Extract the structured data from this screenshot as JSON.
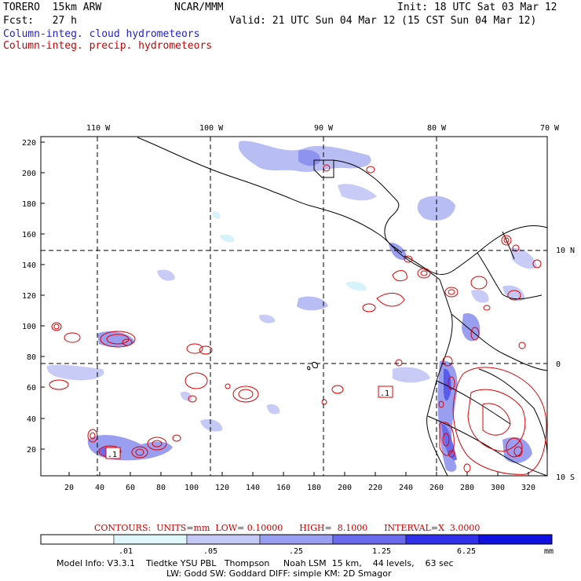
{
  "header": {
    "model": "TORERO  15km ARW",
    "org": "NCAR/MMM",
    "init": "Init: 18 UTC Sat 03 Mar 12",
    "fcst": "Fcst:   27 h",
    "valid": "Valid: 21 UTC Sun 04 Mar 12 (15 CST Sun 04 Mar 12)",
    "legend_cloud": "Column-integ. cloud hydrometeors",
    "legend_precip": "Column-integ. precip. hydrometeors"
  },
  "map": {
    "lon_labels": [
      "110 W",
      "100 W",
      "90 W",
      "80 W",
      "70 W"
    ],
    "lat_labels": [
      "10 N",
      "0",
      "10 S"
    ],
    "y_ticks": [
      "220",
      "200",
      "180",
      "160",
      "140",
      "120",
      "100",
      "80",
      "60",
      "40",
      "20"
    ],
    "x_ticks": [
      "20",
      "40",
      "60",
      "80",
      "100",
      "120",
      "140",
      "160",
      "180",
      "200",
      "220",
      "240",
      "260",
      "280",
      "300",
      "320"
    ],
    "low_markers": [
      ".1",
      ".1"
    ]
  },
  "contour_info": {
    "contours": "CONTOURS:  UNITS=mm  LOW= 0.10000      HIGH=  8.1000      INTERVAL=X  3.0000"
  },
  "colorbar": {
    "labels": [
      ".01",
      ".05",
      ".25",
      "1.25",
      "6.25"
    ],
    "units": "mm",
    "colors": [
      "#ffffff",
      "#dff6fb",
      "#c4c8f4",
      "#9a9ef0",
      "#6a6aee",
      "#3030ea",
      "#1010e0"
    ]
  },
  "footer": {
    "line1": "Model Info: V3.3.1    Tiedtke YSU PBL   Thompson     Noah LSM  15 km,    44 levels,    63 sec",
    "line2": "LW: Godd SW: Goddard DIFF: simple KM: 2D Smagor"
  }
}
